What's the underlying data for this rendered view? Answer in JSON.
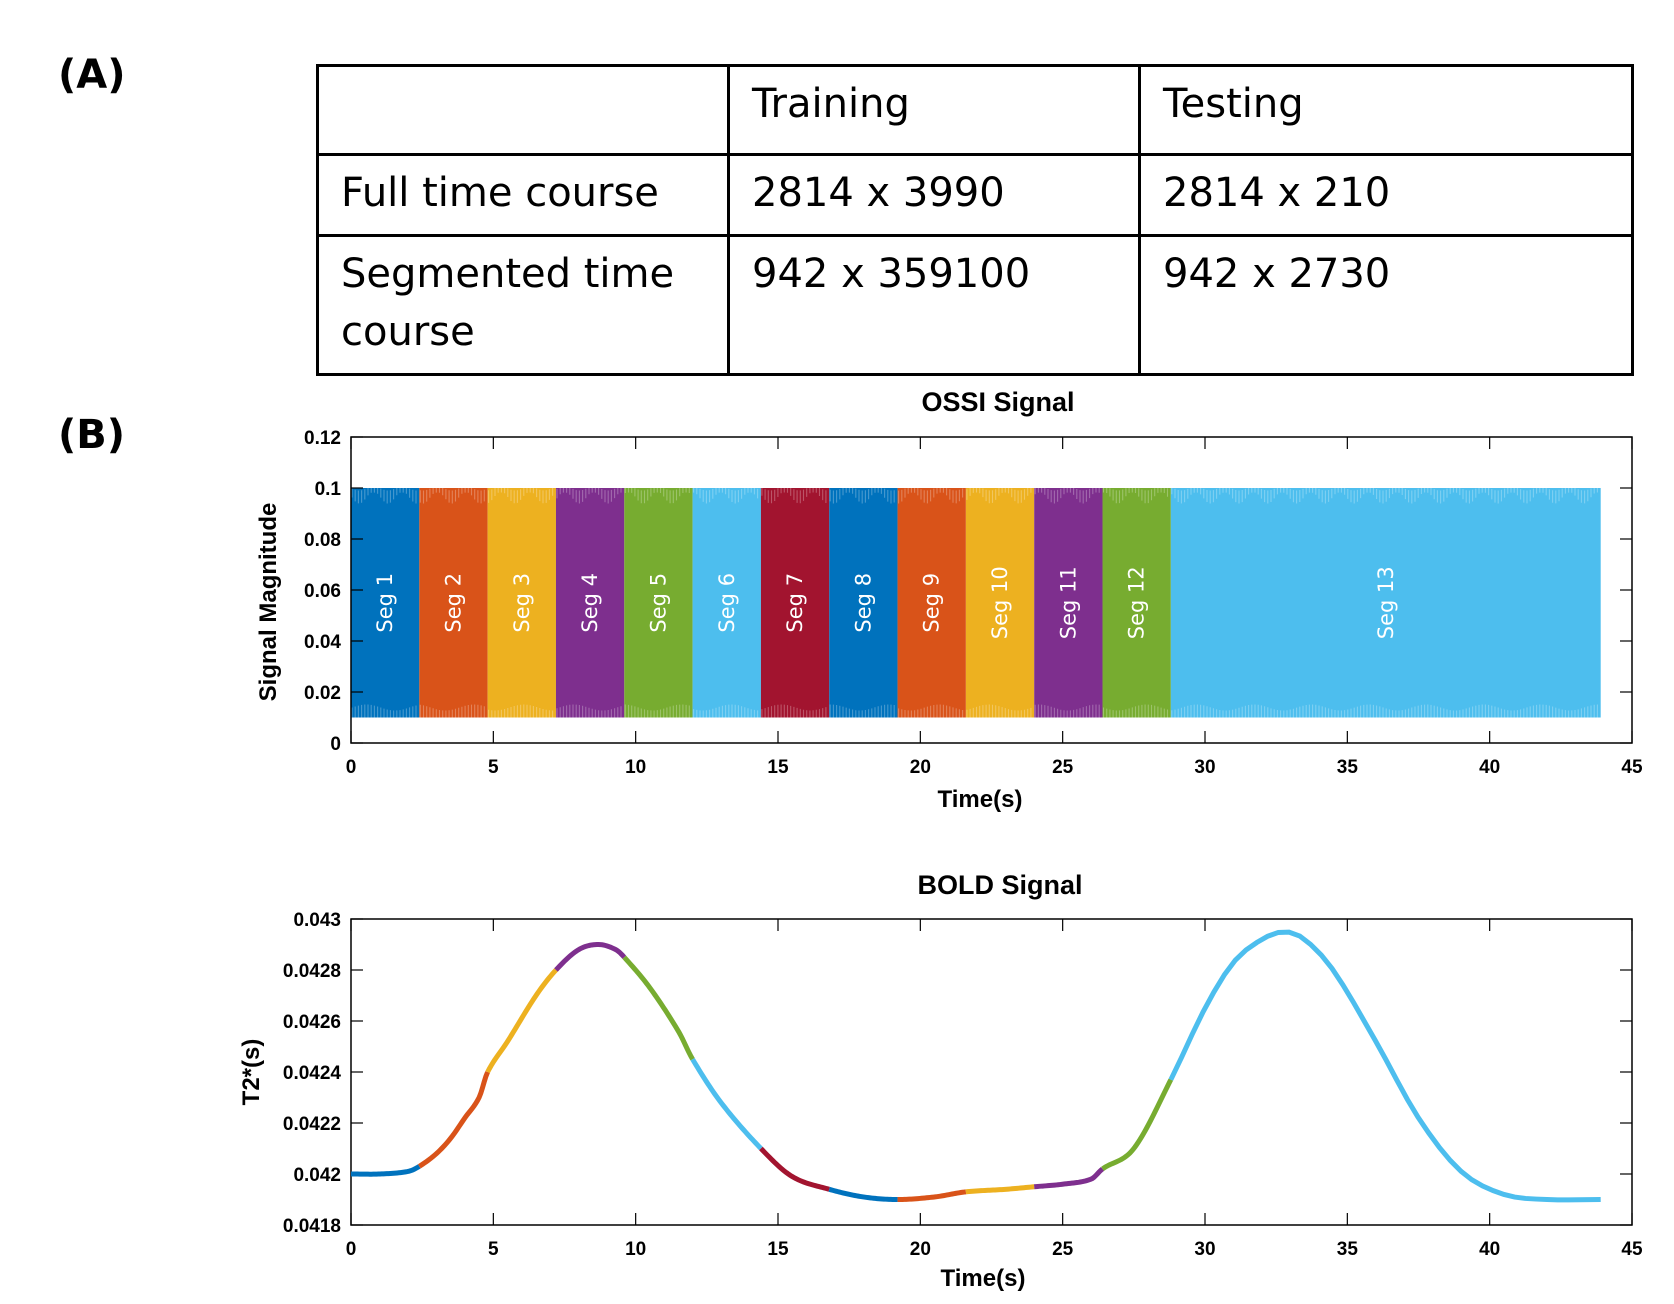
{
  "panels": {
    "a": "(A)",
    "b": "(B)"
  },
  "table": {
    "header": [
      "",
      "Training",
      "Testing"
    ],
    "rows": [
      [
        "Full time course",
        "2814 x 3990",
        "2814 x 210"
      ],
      [
        "Segmented time course",
        "942 x 359100",
        "942 x 2730"
      ]
    ]
  },
  "colors": {
    "blue": "#0072BD",
    "orange": "#D95319",
    "yellow": "#EDB120",
    "purple": "#7E2F8E",
    "green": "#77AC30",
    "cyan": "#4DBEEE",
    "red": "#A2142F"
  },
  "chart_data": [
    {
      "type": "bar",
      "title": "OSSI Signal",
      "xlabel": "Time(s)",
      "ylabel": "Signal Magnitude",
      "xlim": [
        0,
        45
      ],
      "ylim": [
        0,
        0.12
      ],
      "xticks": [
        0,
        5,
        10,
        15,
        20,
        25,
        30,
        35,
        40,
        45
      ],
      "yticks": [
        0,
        0.02,
        0.04,
        0.06,
        0.08,
        0.1,
        0.12
      ],
      "ytick_labels": [
        "0",
        "0.02",
        "0.04",
        "0.06",
        "0.08",
        "0.1",
        "0.12"
      ],
      "signal_range": [
        0.01,
        0.1
      ],
      "segments": [
        {
          "label": "Seg 1",
          "start": 0,
          "end": 2.4,
          "color": "#0072BD"
        },
        {
          "label": "Seg 2",
          "start": 2.4,
          "end": 4.8,
          "color": "#D95319"
        },
        {
          "label": "Seg 3",
          "start": 4.8,
          "end": 7.2,
          "color": "#EDB120"
        },
        {
          "label": "Seg 4",
          "start": 7.2,
          "end": 9.6,
          "color": "#7E2F8E"
        },
        {
          "label": "Seg 5",
          "start": 9.6,
          "end": 12.0,
          "color": "#77AC30"
        },
        {
          "label": "Seg 6",
          "start": 12.0,
          "end": 14.4,
          "color": "#4DBEEE"
        },
        {
          "label": "Seg 7",
          "start": 14.4,
          "end": 16.8,
          "color": "#A2142F"
        },
        {
          "label": "Seg 8",
          "start": 16.8,
          "end": 19.2,
          "color": "#0072BD"
        },
        {
          "label": "Seg 9",
          "start": 19.2,
          "end": 21.6,
          "color": "#D95319"
        },
        {
          "label": "Seg 10",
          "start": 21.6,
          "end": 24.0,
          "color": "#EDB120"
        },
        {
          "label": "Seg 11",
          "start": 24.0,
          "end": 26.4,
          "color": "#7E2F8E"
        },
        {
          "label": "Seg 12",
          "start": 26.4,
          "end": 28.8,
          "color": "#77AC30"
        },
        {
          "label": "Seg 13",
          "start": 28.8,
          "end": 43.9,
          "color": "#4DBEEE"
        }
      ]
    },
    {
      "type": "line",
      "title": "BOLD Signal",
      "xlabel": "Time(s)",
      "ylabel": "T2*(s)",
      "xlim": [
        0,
        45
      ],
      "ylim": [
        0.0418,
        0.043
      ],
      "xticks": [
        0,
        5,
        10,
        15,
        20,
        25,
        30,
        35,
        40,
        45
      ],
      "yticks": [
        0.0418,
        0.042,
        0.0422,
        0.0424,
        0.0426,
        0.0428,
        0.043
      ],
      "ytick_labels": [
        "0.0418",
        "0.042",
        "0.0422",
        "0.0424",
        "0.0426",
        "0.0428",
        "0.043"
      ],
      "points": [
        [
          0,
          0.042
        ],
        [
          1,
          0.042
        ],
        [
          2,
          0.04201
        ],
        [
          2.4,
          0.04203
        ],
        [
          3,
          0.04208
        ],
        [
          3.5,
          0.04214
        ],
        [
          4,
          0.04222
        ],
        [
          4.5,
          0.0423
        ],
        [
          4.8,
          0.0424
        ],
        [
          5.5,
          0.04252
        ],
        [
          6.5,
          0.0427
        ],
        [
          7.2,
          0.0428
        ],
        [
          8,
          0.04288
        ],
        [
          8.7,
          0.0429
        ],
        [
          9.3,
          0.04288
        ],
        [
          9.6,
          0.04285
        ],
        [
          10.5,
          0.04273
        ],
        [
          11.5,
          0.04256
        ],
        [
          12.0,
          0.04245
        ],
        [
          13,
          0.04228
        ],
        [
          14.4,
          0.0421
        ],
        [
          15.5,
          0.04199
        ],
        [
          16.8,
          0.04194
        ],
        [
          18,
          0.04191
        ],
        [
          19.2,
          0.0419
        ],
        [
          20.5,
          0.04191
        ],
        [
          21.6,
          0.04193
        ],
        [
          23,
          0.04194
        ],
        [
          24.0,
          0.04195
        ],
        [
          25,
          0.04196
        ],
        [
          26,
          0.04198
        ],
        [
          26.4,
          0.04202
        ],
        [
          27.5,
          0.0421
        ],
        [
          28.8,
          0.04237
        ],
        [
          30,
          0.04265
        ],
        [
          31,
          0.04283
        ],
        [
          32,
          0.04292
        ],
        [
          32.8,
          0.04295
        ],
        [
          33.5,
          0.04292
        ],
        [
          34.5,
          0.0428
        ],
        [
          36,
          0.04252
        ],
        [
          37.5,
          0.04222
        ],
        [
          39,
          0.04201
        ],
        [
          40.5,
          0.04192
        ],
        [
          42,
          0.0419
        ],
        [
          43.9,
          0.0419
        ]
      ],
      "segment_breaks": [
        0,
        2.4,
        4.8,
        7.2,
        9.6,
        12.0,
        14.4,
        16.8,
        19.2,
        21.6,
        24.0,
        26.4,
        28.8,
        43.9
      ],
      "segment_colors": [
        "#0072BD",
        "#D95319",
        "#EDB120",
        "#7E2F8E",
        "#77AC30",
        "#4DBEEE",
        "#A2142F",
        "#0072BD",
        "#D95319",
        "#EDB120",
        "#7E2F8E",
        "#77AC30",
        "#4DBEEE"
      ]
    }
  ]
}
